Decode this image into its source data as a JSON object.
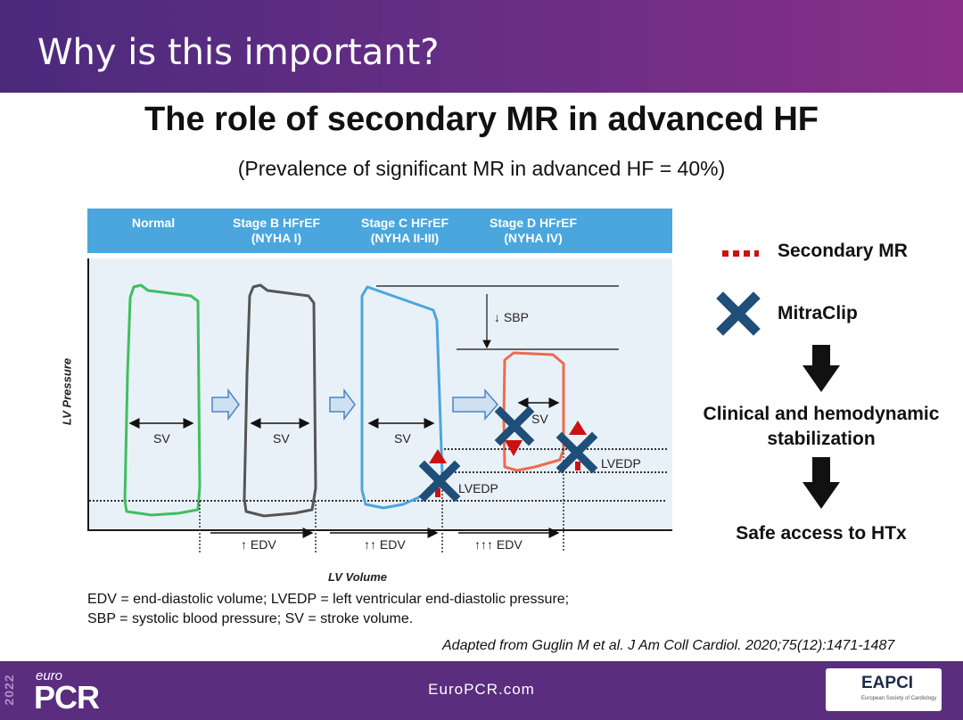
{
  "header": {
    "title": "Why is this important?"
  },
  "main_title": "The role of secondary MR in advanced HF",
  "subtitle": "(Prevalence of significant MR in advanced HF = 40%)",
  "stages": [
    {
      "line1": "Normal",
      "line2": ""
    },
    {
      "line1": "Stage B HFrEF",
      "line2": "(NYHA I)"
    },
    {
      "line1": "Stage C HFrEF",
      "line2": "(NYHA II-III)"
    },
    {
      "line1": "Stage D HFrEF",
      "line2": "(NYHA IV)"
    }
  ],
  "axes": {
    "y_label": "LV Pressure",
    "x_label": "LV Volume"
  },
  "annotations": {
    "sv": "SV",
    "sbp": "↓ SBP",
    "lvedp": "LVEDP",
    "edv_b": "↑ EDV",
    "edv_c": "↑↑ EDV",
    "edv_d": "↑↑↑ EDV"
  },
  "legend": {
    "secondary_mr": "Secondary MR",
    "mitraclip": "MitraClip"
  },
  "outcomes": {
    "stabilization_line1": "Clinical and hemodynamic",
    "stabilization_line2": "stabilization",
    "htx": "Safe access to HTx"
  },
  "abbreviations": {
    "line1": "EDV = end-diastolic volume; LVEDP = left ventricular end-diastolic pressure;",
    "line2": "SBP = systolic blood pressure; SV = stroke volume."
  },
  "citation": "Adapted from Guglin M et al. J Am Coll Cardiol. 2020;75(12):1471-1487",
  "footer": {
    "year": "2022",
    "brand_small": "euro",
    "brand_large": "PCR",
    "url": "EuroPCR.com",
    "partner": "EAPCI",
    "partner_sub": "European Society of Cardiology"
  },
  "colors": {
    "header_purple": "#5a2d7e",
    "band_blue": "#4aa6dd",
    "normal_loop": "#3fbf5f",
    "stage_b_loop": "#555555",
    "stage_c_loop": "#4aa6dd",
    "stage_d_loop": "#ee6b4d",
    "mitraclip_x": "#1f4e79",
    "mr_red": "#cc1111"
  }
}
